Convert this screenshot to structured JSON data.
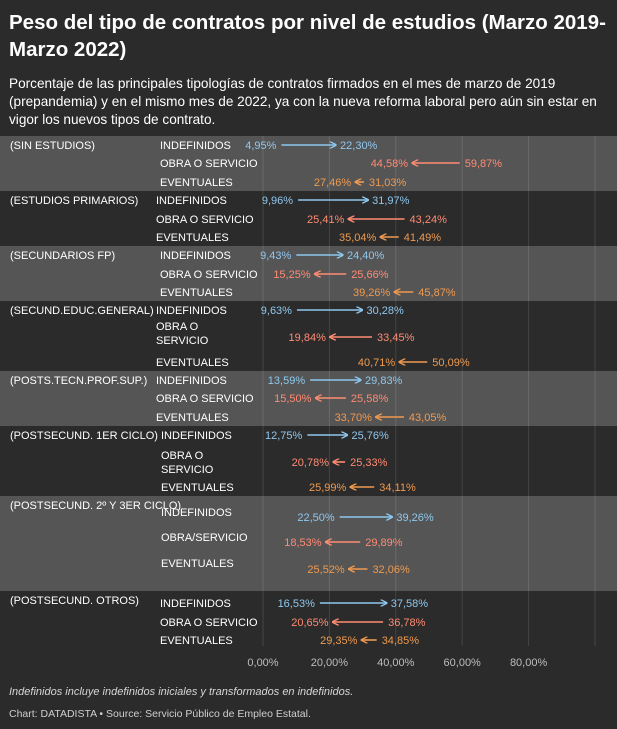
{
  "header": {
    "title": "Peso del tipo de contratos por nivel de estudios (Marzo 2019-Marzo 2022)",
    "subtitle": "Porcentaje de las principales tipologías de contratos firmados en el mes de marzo de 2019 (prepandemia) y en el mismo mes de 2022, ya con la nueva reforma laboral pero aún sin estar en vigor los nuevos tipos de contrato."
  },
  "footer": {
    "note": "Indefinidos incluye indefinidos iniciales y transformados en indefinidos.",
    "source": "Chart: DATADISTA • Source: Servicio Público de Empleo Estatal."
  },
  "colors": {
    "background": "#2b2b2b",
    "band": "#555555",
    "indefinidos": "#8fc8ee",
    "obra": "#ff8b73",
    "eventuales": "#ef9a4f",
    "grid": "#4a4a4a"
  },
  "chart_data": {
    "type": "arrow-dot",
    "title": "Peso del tipo de contratos por nivel de estudios (Marzo 2019-Marzo 2022)",
    "xlabel": "",
    "ylabel": "",
    "xlim": [
      0,
      100
    ],
    "xticks": [
      0,
      20,
      40,
      60,
      80
    ],
    "xtick_labels": [
      "0,00%",
      "20,00%",
      "40,00%",
      "60,00%",
      "80,00%"
    ],
    "grid": true,
    "series_meaning": {
      "from": "Marzo 2019",
      "to": "Marzo 2022"
    },
    "groups": [
      {
        "name": "(SIN ESTUDIOS)",
        "rows": [
          {
            "type": "INDEFINIDOS",
            "kind": "indefinidos",
            "from": 4.95,
            "to": 22.3,
            "from_label": "4,95%",
            "to_label": "22,30%"
          },
          {
            "type": "OBRA O SERVICIO",
            "kind": "obra",
            "from": 59.87,
            "to": 44.58,
            "from_label": "59,87%",
            "to_label": "44,58%"
          },
          {
            "type": "EVENTUALES",
            "kind": "eventuales",
            "from": 31.03,
            "to": 27.46,
            "from_label": "31,03%",
            "to_label": "27,46%"
          }
        ]
      },
      {
        "name": "(ESTUDIOS PRIMARIOS)",
        "rows": [
          {
            "type": "INDEFINIDOS",
            "kind": "indefinidos",
            "from": 9.96,
            "to": 31.97,
            "from_label": "9,96%",
            "to_label": "31,97%"
          },
          {
            "type": "OBRA O SERVICIO",
            "kind": "obra",
            "from": 43.24,
            "to": 25.41,
            "from_label": "43,24%",
            "to_label": "25,41%"
          },
          {
            "type": "EVENTUALES",
            "kind": "eventuales",
            "from": 41.49,
            "to": 35.04,
            "from_label": "41,49%",
            "to_label": "35,04%"
          }
        ]
      },
      {
        "name": "(SECUNDARIOS FP)",
        "rows": [
          {
            "type": "INDEFINIDOS",
            "kind": "indefinidos",
            "from": 9.43,
            "to": 24.4,
            "from_label": "9,43%",
            "to_label": "24,40%"
          },
          {
            "type": "OBRA O SERVICIO",
            "kind": "obra",
            "from": 25.66,
            "to": 15.25,
            "from_label": "25,66%",
            "to_label": "15,25%"
          },
          {
            "type": "EVENTUALES",
            "kind": "eventuales",
            "from": 45.87,
            "to": 39.26,
            "from_label": "45,87%",
            "to_label": "39,26%"
          }
        ]
      },
      {
        "name": "(SECUND.EDUC.GENERAL)",
        "rows": [
          {
            "type": "INDEFINIDOS",
            "kind": "indefinidos",
            "from": 9.63,
            "to": 30.28,
            "from_label": "9,63%",
            "to_label": "30,28%"
          },
          {
            "type": "OBRA O SERVICIO",
            "kind": "obra",
            "from": 33.45,
            "to": 19.84,
            "from_label": "33,45%",
            "to_label": "19,84%"
          },
          {
            "type": "EVENTUALES",
            "kind": "eventuales",
            "from": 50.09,
            "to": 40.71,
            "from_label": "50,09%",
            "to_label": "40,71%"
          }
        ]
      },
      {
        "name": "(POSTS.TECN.PROF.SUP.)",
        "rows": [
          {
            "type": "INDEFINIDOS",
            "kind": "indefinidos",
            "from": 13.59,
            "to": 29.83,
            "from_label": "13,59%",
            "to_label": "29,83%"
          },
          {
            "type": "OBRA O SERVICIO",
            "kind": "obra",
            "from": 25.58,
            "to": 15.5,
            "from_label": "25,58%",
            "to_label": "15,50%"
          },
          {
            "type": "EVENTUALES",
            "kind": "eventuales",
            "from": 43.05,
            "to": 33.7,
            "from_label": "43,05%",
            "to_label": "33,70%"
          }
        ]
      },
      {
        "name": "(POSTSECUND. 1ER CICLO)",
        "rows": [
          {
            "type": "INDEFINIDOS",
            "kind": "indefinidos",
            "from": 12.75,
            "to": 25.76,
            "from_label": "12,75%",
            "to_label": "25,76%"
          },
          {
            "type": "OBRA O SERVICIO",
            "kind": "obra",
            "from": 25.33,
            "to": 20.78,
            "from_label": "25,33%",
            "to_label": "20,78%"
          },
          {
            "type": "EVENTUALES",
            "kind": "eventuales",
            "from": 34.11,
            "to": 25.99,
            "from_label": "34,11%",
            "to_label": "25,99%"
          }
        ]
      },
      {
        "name": "(POSTSECUND. 2º Y 3ER CICLO)",
        "rows": [
          {
            "type": "INDEFINIDOS",
            "kind": "indefinidos",
            "from": 22.5,
            "to": 39.26,
            "from_label": "22,50%",
            "to_label": "39,26%"
          },
          {
            "type": "OBRA/SERVICIO",
            "kind": "obra",
            "from": 29.89,
            "to": 18.53,
            "from_label": "29,89%",
            "to_label": "18,53%"
          },
          {
            "type": "EVENTUALES",
            "kind": "eventuales",
            "from": 32.06,
            "to": 25.52,
            "from_label": "32,06%",
            "to_label": "25,52%"
          }
        ]
      },
      {
        "name": "(POSTSECUND. OTROS)",
        "rows": [
          {
            "type": "INDEFINIDOS",
            "kind": "indefinidos",
            "from": 16.53,
            "to": 37.58,
            "from_label": "16,53%",
            "to_label": "37,58%"
          },
          {
            "type": "OBRA O SERVICIO",
            "kind": "obra",
            "from": 36.78,
            "to": 20.65,
            "from_label": "36,78%",
            "to_label": "20,65%"
          },
          {
            "type": "EVENTUALES",
            "kind": "eventuales",
            "from": 34.85,
            "to": 29.35,
            "from_label": "34,85%",
            "to_label": "29,35%"
          }
        ]
      }
    ]
  }
}
